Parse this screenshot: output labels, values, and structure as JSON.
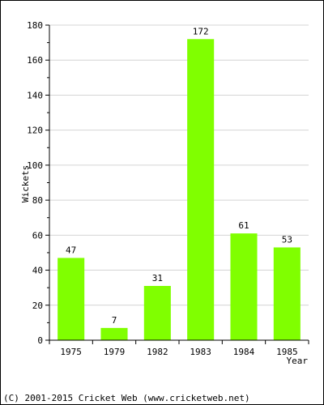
{
  "chart_data": {
    "type": "bar",
    "categories": [
      "1975",
      "1979",
      "1982",
      "1983",
      "1984",
      "1985"
    ],
    "values": [
      47,
      7,
      31,
      172,
      61,
      53
    ],
    "data_labels": [
      "47",
      "7",
      "31",
      "172",
      "61",
      "53"
    ],
    "title": "",
    "xlabel": "Year",
    "ylabel": "Wickets",
    "ylim": [
      0,
      180
    ],
    "yticks": [
      0,
      20,
      40,
      60,
      80,
      100,
      120,
      140,
      160,
      180
    ],
    "grid": true,
    "bar_color": "#80ff00"
  },
  "footer": {
    "copyright": "(C) 2001-2015 Cricket Web (www.cricketweb.net)"
  }
}
